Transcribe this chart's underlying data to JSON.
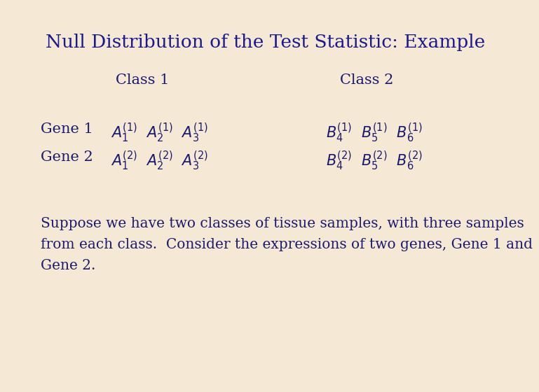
{
  "title": "Null Distribution of the Test Statistic: Example",
  "title_color": "#1a1a8c",
  "title_fontsize": 19,
  "background_color": "#f5e9d5",
  "text_color": "#1a1a6e",
  "body_text_color": "#1a1a6e",
  "class1_label": "Class 1",
  "class2_label": "Class 2",
  "class_fontsize": 15,
  "gene_label_fontsize": 15,
  "data_fontsize": 15,
  "paragraph_fontsize": 14.5,
  "paragraph_line1": "Suppose we have two classes of tissue samples, with three samples",
  "paragraph_line2": "from each class.  Consider the expressions of two genes, Gene 1 and",
  "paragraph_line3": "Gene 2."
}
